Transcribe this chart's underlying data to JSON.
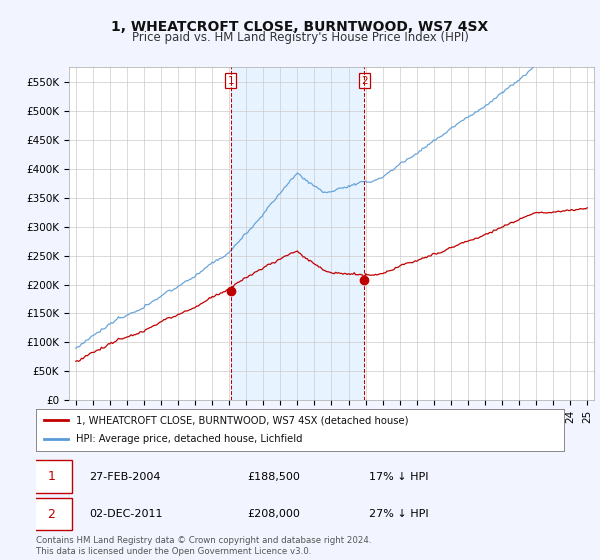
{
  "title": "1, WHEATCROFT CLOSE, BURNTWOOD, WS7 4SX",
  "subtitle": "Price paid vs. HM Land Registry's House Price Index (HPI)",
  "ylim": [
    0,
    575000
  ],
  "yticks": [
    0,
    50000,
    100000,
    150000,
    200000,
    250000,
    300000,
    350000,
    400000,
    450000,
    500000,
    550000
  ],
  "ytick_labels": [
    "£0",
    "£50K",
    "£100K",
    "£150K",
    "£200K",
    "£250K",
    "£300K",
    "£350K",
    "£400K",
    "£450K",
    "£500K",
    "£550K"
  ],
  "hpi_color": "#5b9bd5",
  "price_color": "#c00000",
  "marker1_price": 188500,
  "marker1_date_str": "27-FEB-2004",
  "marker1_pct": "17% ↓ HPI",
  "marker1_year": 2004.12,
  "marker2_price": 208000,
  "marker2_date_str": "02-DEC-2011",
  "marker2_pct": "27% ↓ HPI",
  "marker2_year": 2011.92,
  "legend_property": "1, WHEATCROFT CLOSE, BURNTWOOD, WS7 4SX (detached house)",
  "legend_hpi": "HPI: Average price, detached house, Lichfield",
  "footnote": "Contains HM Land Registry data © Crown copyright and database right 2024.\nThis data is licensed under the Open Government Licence v3.0.",
  "background_color": "#f2f5ff",
  "plot_bg_color": "#ffffff",
  "shaded_color": "#ddeeff",
  "grid_color": "#cccccc",
  "title_fontsize": 10,
  "subtitle_fontsize": 8.5,
  "tick_fontsize": 7.5
}
